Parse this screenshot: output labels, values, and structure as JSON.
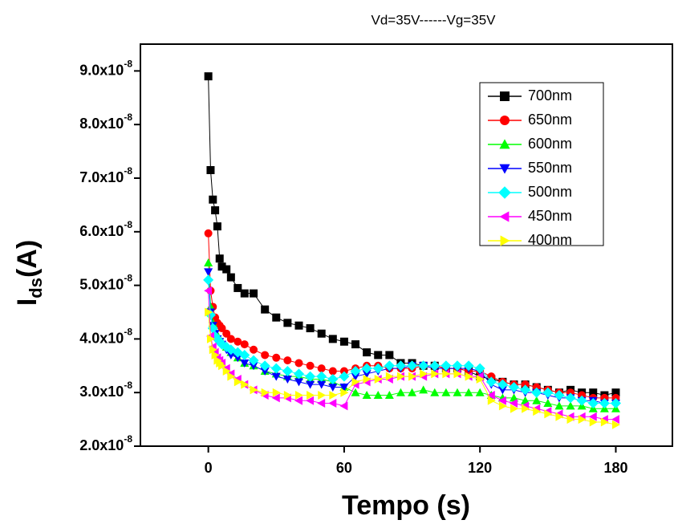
{
  "chart_data": {
    "type": "scatter",
    "title": "Vd=35V------Vg=35V",
    "x_label": "Tempo (s)",
    "y_label": [
      "I",
      "ds",
      "(A)"
    ],
    "xlim": [
      -30,
      205
    ],
    "xticks": [
      0,
      60,
      120,
      180
    ],
    "ylim": [
      2e-08,
      9.5e-08
    ],
    "yticks": [
      {
        "value": 2e-08,
        "label": "2.0x10-8"
      },
      {
        "value": 3e-08,
        "label": "3.0x10-8"
      },
      {
        "value": 4e-08,
        "label": "4.0x10-8"
      },
      {
        "value": 5e-08,
        "label": "5.0x10-8"
      },
      {
        "value": 6e-08,
        "label": "6.0x10-8"
      },
      {
        "value": 7e-08,
        "label": "7.0x10-8"
      },
      {
        "value": 8e-08,
        "label": "8.0x10-8"
      },
      {
        "value": 9e-08,
        "label": "9.0x10-8"
      }
    ],
    "legend": "upper right",
    "x": [
      0,
      1,
      2,
      3,
      4,
      5,
      6,
      8,
      10,
      13,
      16,
      20,
      25,
      30,
      35,
      40,
      45,
      50,
      55,
      60,
      65,
      70,
      75,
      80,
      85,
      90,
      95,
      100,
      105,
      110,
      115,
      120,
      125,
      130,
      135,
      140,
      145,
      150,
      155,
      160,
      165,
      170,
      175,
      180
    ],
    "series": [
      {
        "name": "700nm",
        "color": "#000000",
        "marker": "square",
        "values": [
          8.9e-08,
          7.15e-08,
          6.6e-08,
          6.4e-08,
          6.1e-08,
          5.5e-08,
          5.35e-08,
          5.3e-08,
          5.15e-08,
          4.95e-08,
          4.85e-08,
          4.85e-08,
          4.55e-08,
          4.4e-08,
          4.3e-08,
          4.25e-08,
          4.2e-08,
          4.1e-08,
          4e-08,
          3.95e-08,
          3.9e-08,
          3.75e-08,
          3.7e-08,
          3.7e-08,
          3.55e-08,
          3.55e-08,
          3.5e-08,
          3.5e-08,
          3.45e-08,
          3.45e-08,
          3.4e-08,
          3.3e-08,
          3.25e-08,
          3.2e-08,
          3.15e-08,
          3.15e-08,
          3.1e-08,
          3.05e-08,
          3e-08,
          3.05e-08,
          3e-08,
          3e-08,
          2.95e-08,
          3e-08
        ]
      },
      {
        "name": "650nm",
        "color": "#ff0000",
        "marker": "circle",
        "values": [
          5.97e-08,
          4.9e-08,
          4.6e-08,
          4.4e-08,
          4.3e-08,
          4.25e-08,
          4.2e-08,
          4.1e-08,
          4e-08,
          3.95e-08,
          3.9e-08,
          3.8e-08,
          3.7e-08,
          3.65e-08,
          3.6e-08,
          3.55e-08,
          3.5e-08,
          3.45e-08,
          3.4e-08,
          3.4e-08,
          3.45e-08,
          3.5e-08,
          3.5e-08,
          3.45e-08,
          3.45e-08,
          3.45e-08,
          3.5e-08,
          3.5e-08,
          3.45e-08,
          3.45e-08,
          3.4e-08,
          3.4e-08,
          3.3e-08,
          3.2e-08,
          3.15e-08,
          3.15e-08,
          3.1e-08,
          3.05e-08,
          3e-08,
          3e-08,
          2.95e-08,
          2.9e-08,
          2.9e-08,
          2.9e-08
        ]
      },
      {
        "name": "600nm",
        "color": "#00ff00",
        "marker": "triangle-up",
        "values": [
          5.42e-08,
          4.6e-08,
          4.3e-08,
          4.15e-08,
          4.05e-08,
          4e-08,
          3.95e-08,
          3.85e-08,
          3.75e-08,
          3.65e-08,
          3.55e-08,
          3.5e-08,
          3.4e-08,
          3.35e-08,
          3.3e-08,
          3.3e-08,
          3.25e-08,
          3.25e-08,
          3.2e-08,
          3.1e-08,
          3e-08,
          2.95e-08,
          2.95e-08,
          2.95e-08,
          3e-08,
          3e-08,
          3.05e-08,
          3e-08,
          3e-08,
          3e-08,
          3e-08,
          3e-08,
          2.95e-08,
          2.9e-08,
          2.9e-08,
          2.85e-08,
          2.85e-08,
          2.8e-08,
          2.75e-08,
          2.75e-08,
          2.75e-08,
          2.7e-08,
          2.7e-08,
          2.7e-08
        ]
      },
      {
        "name": "550nm",
        "color": "#0000ff",
        "marker": "triangle-down",
        "values": [
          5.25e-08,
          4.5e-08,
          4.25e-08,
          4.1e-08,
          4e-08,
          3.95e-08,
          3.9e-08,
          3.8e-08,
          3.7e-08,
          3.65e-08,
          3.55e-08,
          3.5e-08,
          3.4e-08,
          3.3e-08,
          3.25e-08,
          3.2e-08,
          3.15e-08,
          3.15e-08,
          3.1e-08,
          3.1e-08,
          3.3e-08,
          3.35e-08,
          3.4e-08,
          3.45e-08,
          3.45e-08,
          3.5e-08,
          3.5e-08,
          3.45e-08,
          3.45e-08,
          3.45e-08,
          3.45e-08,
          3.4e-08,
          3.15e-08,
          3.05e-08,
          3.05e-08,
          3e-08,
          3e-08,
          2.95e-08,
          2.9e-08,
          2.9e-08,
          2.85e-08,
          2.85e-08,
          2.8e-08,
          2.8e-08
        ]
      },
      {
        "name": "500nm",
        "color": "#00ffff",
        "marker": "diamond",
        "values": [
          5.1e-08,
          4.45e-08,
          4.2e-08,
          4.05e-08,
          4e-08,
          3.95e-08,
          3.9e-08,
          3.85e-08,
          3.8e-08,
          3.75e-08,
          3.7e-08,
          3.6e-08,
          3.5e-08,
          3.45e-08,
          3.4e-08,
          3.35e-08,
          3.3e-08,
          3.3e-08,
          3.25e-08,
          3.3e-08,
          3.4e-08,
          3.45e-08,
          3.45e-08,
          3.5e-08,
          3.5e-08,
          3.5e-08,
          3.5e-08,
          3.5e-08,
          3.5e-08,
          3.5e-08,
          3.5e-08,
          3.45e-08,
          3.2e-08,
          3.15e-08,
          3.1e-08,
          3.05e-08,
          3e-08,
          3e-08,
          2.95e-08,
          2.9e-08,
          2.85e-08,
          2.8e-08,
          2.8e-08,
          2.8e-08
        ]
      },
      {
        "name": "450nm",
        "color": "#ff00ff",
        "marker": "triangle-left",
        "values": [
          4.9e-08,
          4.05e-08,
          3.85e-08,
          3.75e-08,
          3.65e-08,
          3.6e-08,
          3.55e-08,
          3.45e-08,
          3.35e-08,
          3.25e-08,
          3.15e-08,
          3.05e-08,
          2.95e-08,
          2.9e-08,
          2.9e-08,
          2.85e-08,
          2.85e-08,
          2.8e-08,
          2.8e-08,
          2.75e-08,
          3.15e-08,
          3.2e-08,
          3.25e-08,
          3.25e-08,
          3.3e-08,
          3.3e-08,
          3.3e-08,
          3.35e-08,
          3.35e-08,
          3.35e-08,
          3.3e-08,
          3.3e-08,
          2.95e-08,
          2.85e-08,
          2.8e-08,
          2.75e-08,
          2.7e-08,
          2.65e-08,
          2.6e-08,
          2.55e-08,
          2.55e-08,
          2.55e-08,
          2.5e-08,
          2.5e-08
        ]
      },
      {
        "name": "400nm",
        "color": "#ffff00",
        "marker": "triangle-right",
        "values": [
          4.5e-08,
          4e-08,
          3.8e-08,
          3.7e-08,
          3.6e-08,
          3.55e-08,
          3.5e-08,
          3.4e-08,
          3.3e-08,
          3.2e-08,
          3.15e-08,
          3.05e-08,
          3e-08,
          3e-08,
          2.95e-08,
          2.95e-08,
          2.95e-08,
          2.95e-08,
          2.95e-08,
          3e-08,
          3.2e-08,
          3.25e-08,
          3.25e-08,
          3.3e-08,
          3.3e-08,
          3.3e-08,
          3.35e-08,
          3.35e-08,
          3.35e-08,
          3.35e-08,
          3.3e-08,
          3.25e-08,
          2.85e-08,
          2.75e-08,
          2.7e-08,
          2.7e-08,
          2.65e-08,
          2.6e-08,
          2.55e-08,
          2.5e-08,
          2.5e-08,
          2.45e-08,
          2.45e-08,
          2.4e-08
        ]
      }
    ]
  }
}
